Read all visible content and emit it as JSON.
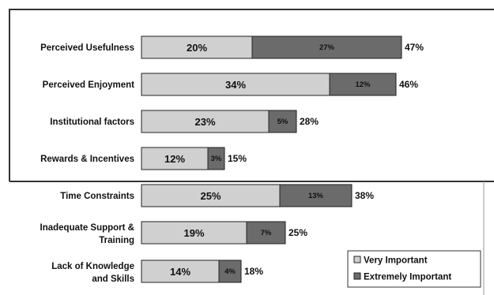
{
  "chart_data": {
    "type": "bar",
    "orientation": "horizontal",
    "stacked": true,
    "categories": [
      "Perceived Usefulness",
      "Perceived Enjoyment",
      "Institutional factors",
      "Rewards & Incentives",
      "Time Constraints",
      "Inadequate Support & Training",
      "Lack of Knowledge and Skills"
    ],
    "series": [
      {
        "name": "Very Important",
        "values": [
          20,
          34,
          23,
          12,
          25,
          19,
          14
        ],
        "color": "#d0d0d0",
        "labels": [
          "20%",
          "34%",
          "23%",
          "12%",
          "25%",
          "19%",
          "14%"
        ]
      },
      {
        "name": "Extremely Important",
        "values": [
          27,
          12,
          5,
          3,
          13,
          7,
          4
        ],
        "color": "#6b6b6b",
        "labels": [
          "27%",
          "12%",
          "5%",
          "3%",
          "13%",
          "7%",
          "4%"
        ]
      }
    ],
    "totals": [
      "47%",
      "46%",
      "28%",
      "15%",
      "38%",
      "25%",
      "18%"
    ],
    "xlim": [
      0,
      47
    ],
    "grid": false,
    "legend_position": "bottom-right"
  }
}
